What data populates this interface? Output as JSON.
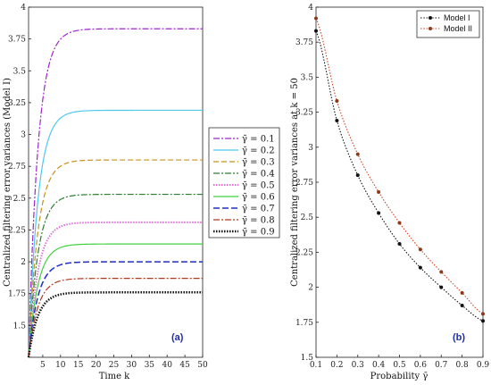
{
  "chart_data": [
    {
      "type": "line",
      "panel_label": "(a)",
      "xlabel": "Time k",
      "ylabel": "Centralized filtering error variances (Model I)",
      "xlim": [
        1,
        50
      ],
      "ylim": [
        1.25,
        4
      ],
      "xticks": [
        5,
        10,
        15,
        20,
        25,
        30,
        35,
        40,
        45,
        50
      ],
      "yticks": [
        1.5,
        1.75,
        2,
        2.25,
        2.5,
        2.75,
        3,
        3.25,
        3.5,
        3.75,
        4
      ],
      "grid": false,
      "legend_position": "outside-right",
      "series": [
        {
          "name": "γ̄ = 0.1",
          "steady": 3.83,
          "color": "#9b27c9",
          "dash": "7 2 2 2",
          "width": 1.2
        },
        {
          "name": "γ̄ = 0.2",
          "steady": 3.19,
          "color": "#4fc8f0",
          "dash": "",
          "width": 1.2
        },
        {
          "name": "γ̄ = 0.3",
          "steady": 2.8,
          "color": "#c8901e",
          "dash": "6 3",
          "width": 1.2
        },
        {
          "name": "γ̄ = 0.4",
          "steady": 2.53,
          "color": "#2e7d32",
          "dash": "7 2 2 2",
          "width": 1.2
        },
        {
          "name": "γ̄ = 0.5",
          "steady": 2.31,
          "color": "#e070d8",
          "dash": "1.5 1.5",
          "width": 2
        },
        {
          "name": "γ̄ = 0.6",
          "steady": 2.14,
          "color": "#3fd23f",
          "dash": "",
          "width": 1.2
        },
        {
          "name": "γ̄ = 0.7",
          "steady": 2.0,
          "color": "#1f2fc8",
          "dash": "7 3",
          "width": 1.5
        },
        {
          "name": "γ̄ = 0.8",
          "steady": 1.87,
          "color": "#b03a1e",
          "dash": "7 2 2 2",
          "width": 1.2
        },
        {
          "name": "γ̄ = 0.9",
          "steady": 1.76,
          "color": "#111111",
          "dash": "1.5 1.5",
          "width": 2.5
        }
      ]
    },
    {
      "type": "line",
      "panel_label": "(b)",
      "xlabel": "Probability γ̄",
      "ylabel": "Centralized filtering error variances at k = 50",
      "xlim": [
        0.1,
        0.9
      ],
      "ylim": [
        1.5,
        4
      ],
      "xticks": [
        0.1,
        0.2,
        0.3,
        0.4,
        0.5,
        0.6,
        0.7,
        0.8,
        0.9
      ],
      "yticks": [
        1.5,
        1.75,
        2,
        2.25,
        2.5,
        2.75,
        3,
        3.25,
        3.5,
        3.75,
        4
      ],
      "grid": false,
      "legend_position": "top-right",
      "x": [
        0.1,
        0.2,
        0.3,
        0.4,
        0.5,
        0.6,
        0.7,
        0.8,
        0.9
      ],
      "series": [
        {
          "name": "Model I",
          "values": [
            3.83,
            3.19,
            2.8,
            2.53,
            2.31,
            2.14,
            2.0,
            1.87,
            1.76
          ],
          "color": "#111111",
          "marker": "#111111"
        },
        {
          "name": "Model II",
          "values": [
            3.92,
            3.33,
            2.95,
            2.68,
            2.46,
            2.27,
            2.11,
            1.96,
            1.81
          ],
          "color": "#d0442a",
          "marker": "#8a3a1a"
        }
      ]
    }
  ]
}
